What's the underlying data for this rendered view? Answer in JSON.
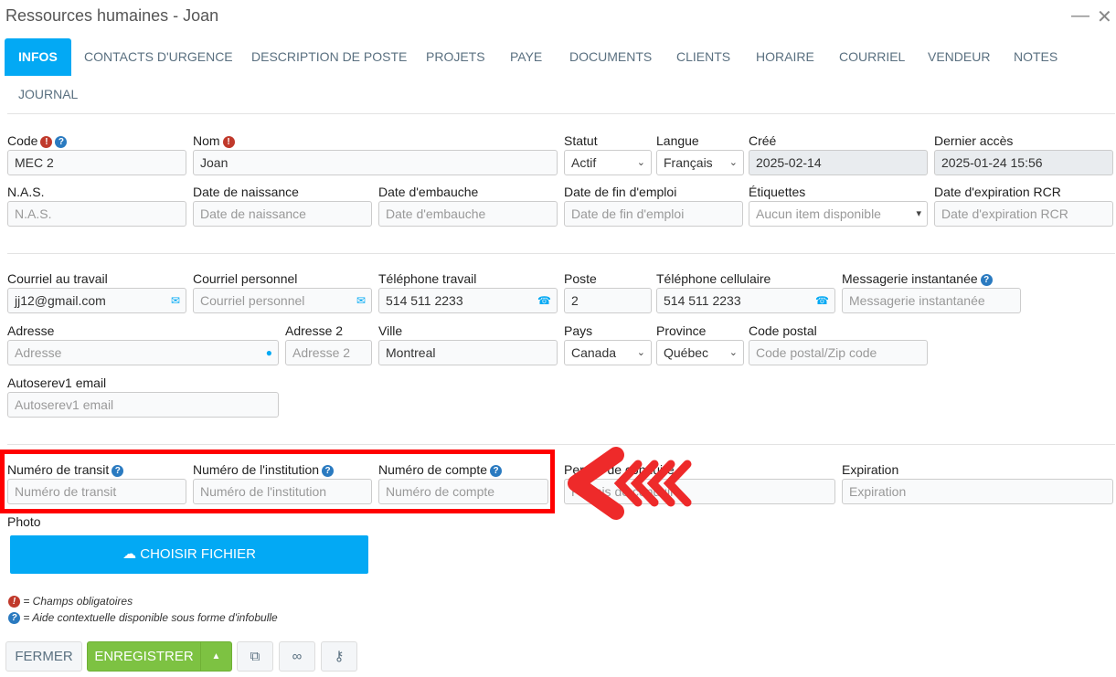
{
  "window": {
    "title": "Ressources humaines - Joan",
    "minimize": "—",
    "close": "✕"
  },
  "tabs": [
    {
      "label": "INFOS",
      "active": true
    },
    {
      "label": "CONTACTS D'URGENCE"
    },
    {
      "label": "DESCRIPTION DE POSTE"
    },
    {
      "label": "PROJETS"
    },
    {
      "label": "PAYE"
    },
    {
      "label": "DOCUMENTS"
    },
    {
      "label": "CLIENTS"
    },
    {
      "label": "HORAIRE"
    },
    {
      "label": "COURRIEL"
    },
    {
      "label": "VENDEUR"
    },
    {
      "label": "NOTES"
    },
    {
      "label": "JOURNAL"
    }
  ],
  "fields": [
    {
      "id": "code",
      "label": "Code",
      "value": "MEC 2",
      "required": true,
      "help": true
    },
    {
      "id": "nom",
      "label": "Nom",
      "value": "Joan",
      "required": true
    },
    {
      "id": "statut",
      "label": "Statut",
      "value": "Actif",
      "type": "select"
    },
    {
      "id": "langue",
      "label": "Langue",
      "value": "Français",
      "type": "select"
    },
    {
      "id": "cree",
      "label": "Créé",
      "value": "2025-02-14",
      "readonly": true
    },
    {
      "id": "dernier-acces",
      "label": "Dernier accès",
      "value": "2025-01-24 15:56",
      "readonly": true
    },
    {
      "id": "nas",
      "label": "N.A.S.",
      "placeholder": "N.A.S."
    },
    {
      "id": "naissance",
      "label": "Date de naissance",
      "placeholder": "Date de naissance"
    },
    {
      "id": "embauche",
      "label": "Date d'embauche",
      "placeholder": "Date d'embauche"
    },
    {
      "id": "fin-emploi",
      "label": "Date de fin d'emploi",
      "placeholder": "Date de fin d'emploi"
    },
    {
      "id": "etiquettes",
      "label": "Étiquettes",
      "placeholder": "Aucun item disponible",
      "type": "combo"
    },
    {
      "id": "rcr",
      "label": "Date d'expiration RCR",
      "placeholder": "Date d'expiration RCR"
    },
    {
      "id": "courriel-travail",
      "label": "Courriel au travail",
      "value": "jj12@gmail.com",
      "icon": "envelope-icon"
    },
    {
      "id": "courriel-perso",
      "label": "Courriel personnel",
      "placeholder": "Courriel personnel",
      "icon": "envelope-icon"
    },
    {
      "id": "tel-travail",
      "label": "Téléphone travail",
      "value": "514 511 2233",
      "icon": "phone-icon"
    },
    {
      "id": "poste",
      "label": "Poste",
      "value": "2"
    },
    {
      "id": "cellulaire",
      "label": "Téléphone cellulaire",
      "value": "514 511 2233",
      "icon": "phone-icon"
    },
    {
      "id": "messagerie",
      "label": "Messagerie instantanée",
      "placeholder": "Messagerie instantanée",
      "help": true
    },
    {
      "id": "adresse",
      "label": "Adresse",
      "placeholder": "Adresse",
      "icon": "globe-icon"
    },
    {
      "id": "adresse2",
      "label": "Adresse 2",
      "placeholder": "Adresse 2"
    },
    {
      "id": "ville",
      "label": "Ville",
      "value": "Montreal"
    },
    {
      "id": "pays",
      "label": "Pays",
      "value": "Canada",
      "type": "select"
    },
    {
      "id": "province",
      "label": "Province",
      "value": "Québec",
      "type": "select"
    },
    {
      "id": "code-postal",
      "label": "Code postal",
      "placeholder": "Code postal/Zip code"
    },
    {
      "id": "autoserev",
      "label": "Autoserev1 email",
      "placeholder": "Autoserev1 email"
    },
    {
      "id": "transit",
      "label": "Numéro de transit",
      "placeholder": "Numéro de transit",
      "help": true
    },
    {
      "id": "institution",
      "label": "Numéro de l'institution",
      "placeholder": "Numéro de l'institution",
      "help": true
    },
    {
      "id": "compte",
      "label": "Numéro de compte",
      "placeholder": "Numéro de compte",
      "help": true
    },
    {
      "id": "permis",
      "label": "Permis de conduire",
      "placeholder": "Permis de conduire"
    },
    {
      "id": "expiration",
      "label": "Expiration",
      "placeholder": "Expiration"
    }
  ],
  "photo": {
    "label": "Photo",
    "button": "CHOISIR FICHIER"
  },
  "legend": {
    "required": "= Champs obligatoires",
    "help": "= Aide contextuelle disponible sous forme d'infobulle"
  },
  "actions": {
    "close": "FERMER",
    "save": "ENREGISTRER"
  },
  "colors": {
    "accent": "#03a9f4",
    "save": "#7dc242",
    "required": "#c0392b",
    "help": "#2a7ac0",
    "highlight": "#ff0000",
    "arrow": "#ee2a2a"
  }
}
